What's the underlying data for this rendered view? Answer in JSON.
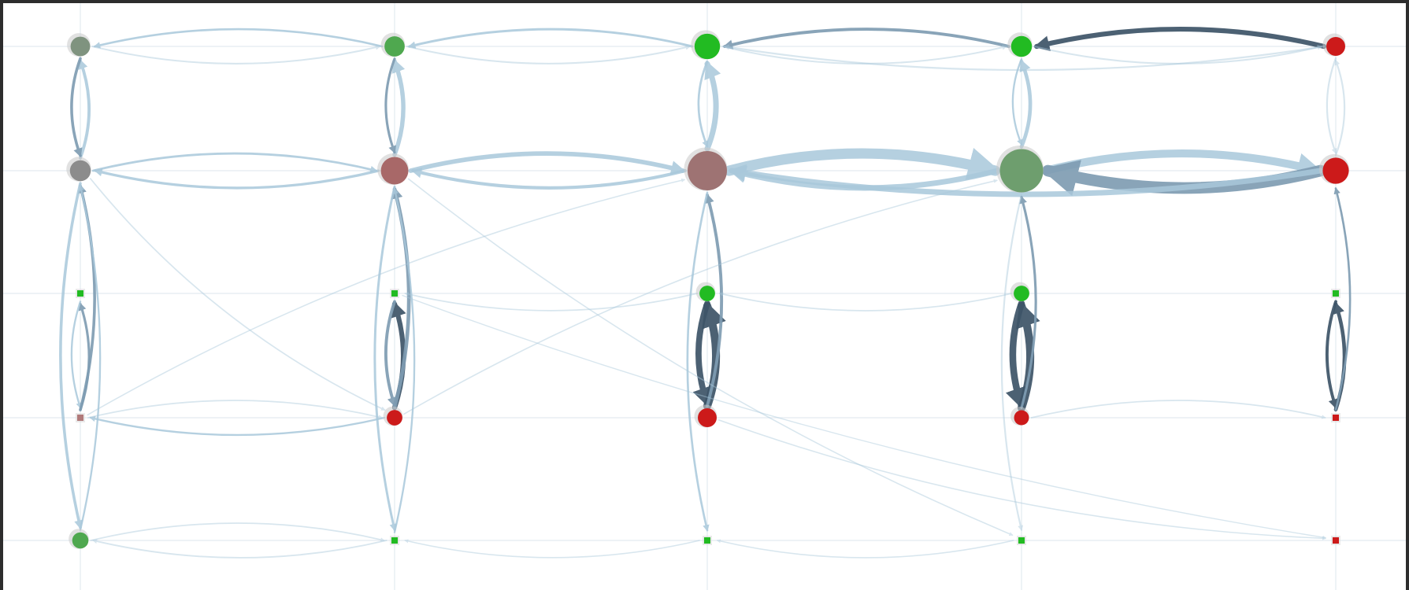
{
  "colors": {
    "frame": "#2d2d2d",
    "background": "#ffffff",
    "gridline": "#e3ebf1",
    "edge_light": "#a9c8db",
    "edge_medium": "#7f9db3",
    "edge_dark": "#3d5468",
    "node_green": "#22bb22",
    "node_green_muted": "#4fa84f",
    "node_sage": "#6e9e6e",
    "node_red": "#cc1a1a",
    "node_grey": "#8c8c8c",
    "node_grey_green": "#7f937f",
    "node_mauve": "#9e7373",
    "node_rose": "#a86868",
    "node_pink": "#b07a7a"
  },
  "graph": {
    "nodes": [
      {
        "id": "c0r0",
        "col": 0,
        "row": 0,
        "color": "node_grey_green",
        "weight": 2
      },
      {
        "id": "c0r1",
        "col": 0,
        "row": 1,
        "color": "node_grey",
        "weight": 2.2
      },
      {
        "id": "c0r2",
        "col": 0,
        "row": 2,
        "color": "node_green",
        "weight": 0.8,
        "shape": "square"
      },
      {
        "id": "c0r3",
        "col": 0,
        "row": 3,
        "color": "node_pink",
        "weight": 0.7,
        "shape": "square"
      },
      {
        "id": "c0r4",
        "col": 0,
        "row": 4,
        "color": "node_green_muted",
        "weight": 1.5
      },
      {
        "id": "c1r0",
        "col": 1,
        "row": 0,
        "color": "node_green_muted",
        "weight": 2.1
      },
      {
        "id": "c1r1",
        "col": 1,
        "row": 1,
        "color": "node_rose",
        "weight": 3.2
      },
      {
        "id": "c1r2",
        "col": 1,
        "row": 2,
        "color": "node_green",
        "weight": 0.8,
        "shape": "square"
      },
      {
        "id": "c1r3",
        "col": 1,
        "row": 3,
        "color": "node_red",
        "weight": 1.4
      },
      {
        "id": "c1r4",
        "col": 1,
        "row": 4,
        "color": "node_green",
        "weight": 0.8,
        "shape": "square"
      },
      {
        "id": "c2r0",
        "col": 2,
        "row": 0,
        "color": "node_green",
        "weight": 2.9
      },
      {
        "id": "c2r1",
        "col": 2,
        "row": 1,
        "color": "node_mauve",
        "weight": 5.0
      },
      {
        "id": "c2r2",
        "col": 2,
        "row": 2,
        "color": "node_green",
        "weight": 1.4
      },
      {
        "id": "c2r3",
        "col": 2,
        "row": 3,
        "color": "node_red",
        "weight": 1.9
      },
      {
        "id": "c2r4",
        "col": 2,
        "row": 4,
        "color": "node_green",
        "weight": 0.7,
        "shape": "square"
      },
      {
        "id": "c3r0",
        "col": 3,
        "row": 0,
        "color": "node_green",
        "weight": 2.2
      },
      {
        "id": "c3r1",
        "col": 3,
        "row": 1,
        "color": "node_sage",
        "weight": 5.6
      },
      {
        "id": "c3r2",
        "col": 3,
        "row": 2,
        "color": "node_green",
        "weight": 1.4
      },
      {
        "id": "c3r3",
        "col": 3,
        "row": 3,
        "color": "node_red",
        "weight": 1.3
      },
      {
        "id": "c3r4",
        "col": 3,
        "row": 4,
        "color": "node_green",
        "weight": 0.8,
        "shape": "square"
      },
      {
        "id": "c4r0",
        "col": 4,
        "row": 0,
        "color": "node_red",
        "weight": 1.9
      },
      {
        "id": "c4r1",
        "col": 4,
        "row": 1,
        "color": "node_red",
        "weight": 3.0
      },
      {
        "id": "c4r2",
        "col": 4,
        "row": 2,
        "color": "node_green",
        "weight": 0.8,
        "shape": "square"
      },
      {
        "id": "c4r3",
        "col": 4,
        "row": 3,
        "color": "node_red",
        "weight": 0.8,
        "shape": "square"
      },
      {
        "id": "c4r4",
        "col": 4,
        "row": 4,
        "color": "node_red",
        "weight": 0.8,
        "shape": "square"
      }
    ],
    "edges": [
      {
        "from": "c4r0",
        "to": "c3r0",
        "weight": 3.5,
        "tone": "dark",
        "side": 1
      },
      {
        "from": "c3r0",
        "to": "c2r0",
        "weight": 2.0,
        "tone": "medium",
        "side": 1
      },
      {
        "from": "c2r0",
        "to": "c1r0",
        "weight": 1.4,
        "tone": "light",
        "side": 1
      },
      {
        "from": "c1r0",
        "to": "c0r0",
        "weight": 1.2,
        "tone": "light",
        "side": 1
      },
      {
        "from": "c0r0",
        "to": "c1r0",
        "weight": 0.8,
        "tone": "light",
        "side": 1
      },
      {
        "from": "c1r0",
        "to": "c2r0",
        "weight": 0.8,
        "tone": "light",
        "side": 1
      },
      {
        "from": "c2r0",
        "to": "c3r0",
        "weight": 0.8,
        "tone": "light",
        "side": 1
      },
      {
        "from": "c3r0",
        "to": "c4r0",
        "weight": 0.8,
        "tone": "light",
        "side": 1
      },
      {
        "from": "c4r0",
        "to": "c2r0",
        "weight": 0.9,
        "tone": "light",
        "side": -1
      },
      {
        "from": "c2r1",
        "to": "c3r1",
        "weight": 8.0,
        "tone": "light",
        "side": -1
      },
      {
        "from": "c3r1",
        "to": "c4r1",
        "weight": 6.0,
        "tone": "light",
        "side": -1
      },
      {
        "from": "c4r1",
        "to": "c3r1",
        "weight": 9.0,
        "tone": "medium",
        "side": -1
      },
      {
        "from": "c3r1",
        "to": "c2r1",
        "weight": 4.0,
        "tone": "light",
        "side": -1
      },
      {
        "from": "c4r1",
        "to": "c2r1",
        "weight": 4.0,
        "tone": "light",
        "side": -1
      },
      {
        "from": "c1r1",
        "to": "c2r1",
        "weight": 3.2,
        "tone": "light",
        "side": -1
      },
      {
        "from": "c2r1",
        "to": "c1r1",
        "weight": 2.2,
        "tone": "light",
        "side": -1
      },
      {
        "from": "c1r1",
        "to": "c0r1",
        "weight": 1.6,
        "tone": "light",
        "side": -1
      },
      {
        "from": "c0r1",
        "to": "c1r1",
        "weight": 1.3,
        "tone": "light",
        "side": -1
      },
      {
        "from": "c2r1",
        "to": "c2r0",
        "weight": 4.0,
        "tone": "light",
        "side": 1
      },
      {
        "from": "c2r0",
        "to": "c2r1",
        "weight": 1.2,
        "tone": "light",
        "side": 1
      },
      {
        "from": "c1r1",
        "to": "c1r0",
        "weight": 3.0,
        "tone": "light",
        "side": 1
      },
      {
        "from": "c1r0",
        "to": "c1r1",
        "weight": 1.5,
        "tone": "medium",
        "side": 1
      },
      {
        "from": "c3r1",
        "to": "c3r0",
        "weight": 2.5,
        "tone": "light",
        "side": 1
      },
      {
        "from": "c3r0",
        "to": "c3r1",
        "weight": 1.0,
        "tone": "light",
        "side": 1
      },
      {
        "from": "c0r1",
        "to": "c0r0",
        "weight": 2.0,
        "tone": "light",
        "side": 1
      },
      {
        "from": "c0r0",
        "to": "c0r1",
        "weight": 1.8,
        "tone": "medium",
        "side": 1
      },
      {
        "from": "c4r1",
        "to": "c4r0",
        "weight": 0.9,
        "tone": "light",
        "side": 1
      },
      {
        "from": "c4r0",
        "to": "c4r1",
        "weight": 0.9,
        "tone": "light",
        "side": 1
      },
      {
        "from": "c2r3",
        "to": "c2r2",
        "weight": 6.0,
        "tone": "dark",
        "side": 1
      },
      {
        "from": "c2r2",
        "to": "c2r3",
        "weight": 4.5,
        "tone": "dark",
        "side": 1
      },
      {
        "from": "c3r3",
        "to": "c3r2",
        "weight": 6.0,
        "tone": "dark",
        "side": 1
      },
      {
        "from": "c3r2",
        "to": "c3r3",
        "weight": 5.0,
        "tone": "dark",
        "side": 1
      },
      {
        "from": "c1r3",
        "to": "c1r2",
        "weight": 3.5,
        "tone": "dark",
        "side": 1
      },
      {
        "from": "c1r2",
        "to": "c1r3",
        "weight": 2.0,
        "tone": "medium",
        "side": 1
      },
      {
        "from": "c4r3",
        "to": "c4r2",
        "weight": 2.5,
        "tone": "dark",
        "side": 1
      },
      {
        "from": "c4r2",
        "to": "c4r3",
        "weight": 2.0,
        "tone": "dark",
        "side": 1
      },
      {
        "from": "c0r3",
        "to": "c0r2",
        "weight": 1.5,
        "tone": "medium",
        "side": 1
      },
      {
        "from": "c0r2",
        "to": "c0r3",
        "weight": 1.0,
        "tone": "light",
        "side": 1
      },
      {
        "from": "c1r3",
        "to": "c1r1",
        "weight": 2.5,
        "tone": "medium",
        "side": 1
      },
      {
        "from": "c2r3",
        "to": "c2r1",
        "weight": 2.0,
        "tone": "medium",
        "side": 1
      },
      {
        "from": "c3r3",
        "to": "c3r1",
        "weight": 1.5,
        "tone": "medium",
        "side": 1
      },
      {
        "from": "c4r3",
        "to": "c4r1",
        "weight": 1.2,
        "tone": "medium",
        "side": 1
      },
      {
        "from": "c0r3",
        "to": "c0r1",
        "weight": 1.8,
        "tone": "medium",
        "side": 1
      },
      {
        "from": "c0r1",
        "to": "c0r4",
        "weight": 1.8,
        "tone": "light",
        "side": 1
      },
      {
        "from": "c1r1",
        "to": "c1r4",
        "weight": 1.4,
        "tone": "light",
        "side": 1
      },
      {
        "from": "c2r1",
        "to": "c2r4",
        "weight": 1.2,
        "tone": "light",
        "side": 1
      },
      {
        "from": "c3r1",
        "to": "c3r4",
        "weight": 0.9,
        "tone": "light",
        "side": 1
      },
      {
        "from": "c0r4",
        "to": "c0r1",
        "weight": 1.0,
        "tone": "light",
        "side": 1
      },
      {
        "from": "c1r4",
        "to": "c1r1",
        "weight": 1.0,
        "tone": "light",
        "side": 1
      },
      {
        "from": "c1r3",
        "to": "c0r3",
        "weight": 1.0,
        "tone": "light",
        "side": -1
      },
      {
        "from": "c0r3",
        "to": "c1r3",
        "weight": 0.6,
        "tone": "light",
        "side": -1
      },
      {
        "from": "c1r4",
        "to": "c0r4",
        "weight": 0.7,
        "tone": "light",
        "side": -1
      },
      {
        "from": "c0r4",
        "to": "c1r4",
        "weight": 0.6,
        "tone": "light",
        "side": -1
      },
      {
        "from": "c2r2",
        "to": "c1r2",
        "weight": 0.6,
        "tone": "light",
        "side": -1
      },
      {
        "from": "c3r2",
        "to": "c2r2",
        "weight": 0.6,
        "tone": "light",
        "side": -1
      },
      {
        "from": "c3r3",
        "to": "c4r3",
        "weight": 0.6,
        "tone": "light",
        "side": -1
      },
      {
        "from": "c2r4",
        "to": "c1r4",
        "weight": 0.5,
        "tone": "light",
        "side": -1
      },
      {
        "from": "c3r4",
        "to": "c2r4",
        "weight": 0.5,
        "tone": "light",
        "side": -1
      },
      {
        "from": "c0r1",
        "to": "c1r3",
        "weight": 0.6,
        "tone": "light",
        "side": 1
      },
      {
        "from": "c1r1",
        "to": "c3r4",
        "weight": 0.5,
        "tone": "light",
        "side": 1
      },
      {
        "from": "c0r3",
        "to": "c2r1",
        "weight": 0.5,
        "tone": "light",
        "side": -1
      },
      {
        "from": "c1r3",
        "to": "c3r1",
        "weight": 0.5,
        "tone": "light",
        "side": -1
      },
      {
        "from": "c2r3",
        "to": "c4r4",
        "weight": 0.5,
        "tone": "light",
        "side": 1
      },
      {
        "from": "c1r2",
        "to": "c4r4",
        "weight": 0.4,
        "tone": "light",
        "side": 1
      }
    ]
  }
}
